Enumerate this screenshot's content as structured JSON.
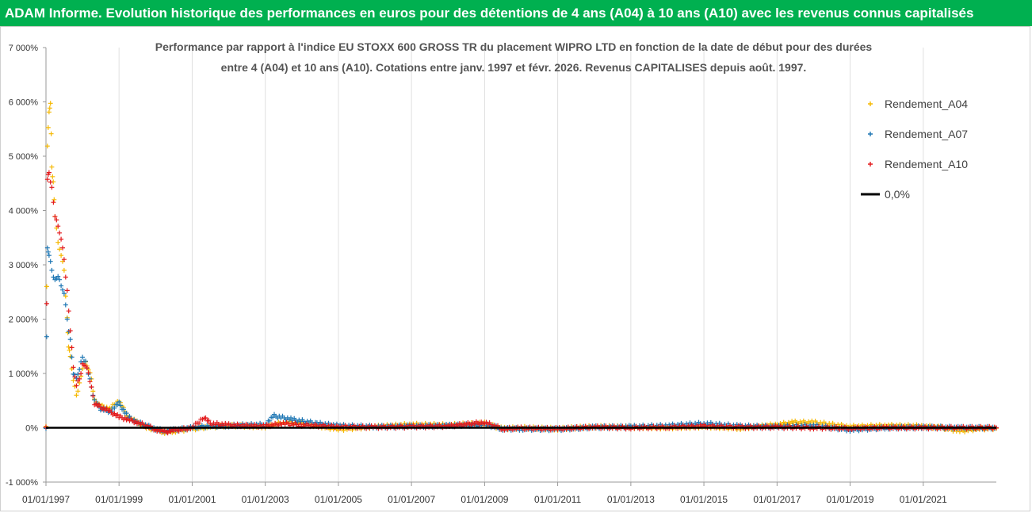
{
  "banner": {
    "title": "ADAM Informe. Evolution historique des performances en euros pour des détentions de 4 ans (A04) à 10 ans (A10) avec les revenus connus capitalisés"
  },
  "chart_data": {
    "type": "scatter",
    "title_lines": [
      "Performance par rapport à l'indice EU STOXX 600 GROSS TR  du placement WIPRO LTD en fonction de la date de début pour des durées",
      "entre 4 (A04) et 10 ans (A10). Cotations entre janv. 1997 et févr.  2026. Revenus CAPITALISES depuis août. 1997."
    ],
    "x_range": [
      "1997-01-01",
      "2023-01-01"
    ],
    "y_range": [
      -1000,
      7000
    ],
    "y_ticks": [
      7000,
      6000,
      5000,
      4000,
      3000,
      2000,
      1000,
      0,
      -1000
    ],
    "y_tick_labels": [
      "7 000%",
      "6 000%",
      "5 000%",
      "4 000%",
      "3 000%",
      "2 000%",
      "1 000%",
      "0%",
      "-1 000%"
    ],
    "x_ticks": [
      "1997-01-01",
      "1999-01-01",
      "2001-01-01",
      "2003-01-01",
      "2005-01-01",
      "2007-01-01",
      "2009-01-01",
      "2011-01-01",
      "2013-01-01",
      "2015-01-01",
      "2017-01-01",
      "2019-01-01",
      "2021-01-01"
    ],
    "x_tick_labels": [
      "01/01/1997",
      "01/01/1999",
      "01/01/2001",
      "01/01/2003",
      "01/01/2005",
      "01/01/2007",
      "01/01/2009",
      "01/01/2011",
      "01/01/2013",
      "01/01/2015",
      "01/01/2017",
      "01/01/2019",
      "01/01/2021"
    ],
    "grid": "vertical",
    "legend_position": "top-right",
    "series": [
      {
        "name": "Rendement_A04",
        "color": "#f5b800",
        "marker": "plus",
        "points": [
          [
            "1997-01-01",
            0
          ],
          [
            "1997-01-15",
            5200
          ],
          [
            "1997-02-01",
            5800
          ],
          [
            "1997-02-15",
            6000
          ],
          [
            "1997-03-01",
            4800
          ],
          [
            "1997-03-15",
            4500
          ],
          [
            "1997-04-01",
            3900
          ],
          [
            "1997-05-01",
            3400
          ],
          [
            "1997-06-01",
            3200
          ],
          [
            "1997-07-01",
            2900
          ],
          [
            "1997-08-01",
            2000
          ],
          [
            "1997-08-15",
            1500
          ],
          [
            "1997-09-01",
            1300
          ],
          [
            "1997-10-01",
            900
          ],
          [
            "1997-11-01",
            600
          ],
          [
            "1997-12-01",
            800
          ],
          [
            "1998-01-01",
            1100
          ],
          [
            "1998-02-01",
            1200
          ],
          [
            "1998-03-01",
            1100
          ],
          [
            "1998-04-01",
            900
          ],
          [
            "1998-05-01",
            500
          ],
          [
            "1998-07-01",
            400
          ],
          [
            "1998-10-01",
            350
          ],
          [
            "1999-01-01",
            500
          ],
          [
            "1999-04-01",
            200
          ],
          [
            "1999-07-01",
            100
          ],
          [
            "1999-10-01",
            0
          ],
          [
            "2000-01-01",
            -30
          ],
          [
            "2000-04-01",
            -80
          ],
          [
            "2000-07-01",
            -60
          ],
          [
            "2001-01-01",
            -20
          ],
          [
            "2001-07-01",
            20
          ],
          [
            "2002-01-01",
            40
          ],
          [
            "2003-01-01",
            20
          ],
          [
            "2003-07-01",
            100
          ],
          [
            "2004-01-01",
            80
          ],
          [
            "2005-01-01",
            -30
          ],
          [
            "2006-01-01",
            20
          ],
          [
            "2007-01-01",
            60
          ],
          [
            "2008-01-01",
            50
          ],
          [
            "2009-01-01",
            80
          ],
          [
            "2009-07-01",
            -20
          ],
          [
            "2010-01-01",
            0
          ],
          [
            "2011-01-01",
            -20
          ],
          [
            "2012-01-01",
            20
          ],
          [
            "2013-01-01",
            10
          ],
          [
            "2014-01-01",
            0
          ],
          [
            "2015-01-01",
            20
          ],
          [
            "2016-01-01",
            -10
          ],
          [
            "2017-01-01",
            60
          ],
          [
            "2017-07-01",
            100
          ],
          [
            "2018-01-01",
            100
          ],
          [
            "2019-01-01",
            20
          ],
          [
            "2020-01-01",
            40
          ],
          [
            "2021-01-01",
            30
          ],
          [
            "2021-07-01",
            0
          ],
          [
            "2022-01-01",
            -60
          ],
          [
            "2022-07-01",
            -20
          ],
          [
            "2023-01-01",
            -10
          ]
        ]
      },
      {
        "name": "Rendement_A07",
        "color": "#1f77b4",
        "marker": "plus",
        "points": [
          [
            "1997-01-01",
            0
          ],
          [
            "1997-01-15",
            3300
          ],
          [
            "1997-02-01",
            3200
          ],
          [
            "1997-03-01",
            2900
          ],
          [
            "1997-04-01",
            2700
          ],
          [
            "1997-05-01",
            2800
          ],
          [
            "1997-06-01",
            2600
          ],
          [
            "1997-07-01",
            2500
          ],
          [
            "1997-08-01",
            2000
          ],
          [
            "1997-09-01",
            1600
          ],
          [
            "1997-10-01",
            1000
          ],
          [
            "1997-11-01",
            900
          ],
          [
            "1997-12-01",
            1100
          ],
          [
            "1998-01-01",
            1300
          ],
          [
            "1998-02-01",
            1200
          ],
          [
            "1998-03-01",
            1000
          ],
          [
            "1998-05-01",
            500
          ],
          [
            "1998-07-01",
            350
          ],
          [
            "1998-10-01",
            300
          ],
          [
            "1999-01-01",
            450
          ],
          [
            "1999-04-01",
            200
          ],
          [
            "1999-07-01",
            100
          ],
          [
            "2000-01-01",
            -20
          ],
          [
            "2000-04-01",
            -60
          ],
          [
            "2000-07-01",
            -40
          ],
          [
            "2001-01-01",
            0
          ],
          [
            "2001-07-01",
            30
          ],
          [
            "2002-01-01",
            40
          ],
          [
            "2003-01-01",
            60
          ],
          [
            "2003-04-01",
            220
          ],
          [
            "2003-10-01",
            150
          ],
          [
            "2004-06-01",
            80
          ],
          [
            "2005-01-01",
            40
          ],
          [
            "2006-01-01",
            20
          ],
          [
            "2007-01-01",
            30
          ],
          [
            "2008-01-01",
            40
          ],
          [
            "2009-01-01",
            60
          ],
          [
            "2009-07-01",
            -20
          ],
          [
            "2010-01-01",
            -20
          ],
          [
            "2011-01-01",
            -30
          ],
          [
            "2012-01-01",
            10
          ],
          [
            "2013-01-01",
            20
          ],
          [
            "2014-01-01",
            40
          ],
          [
            "2015-01-01",
            80
          ],
          [
            "2016-01-01",
            30
          ],
          [
            "2017-01-01",
            20
          ],
          [
            "2018-01-01",
            40
          ],
          [
            "2019-01-01",
            -40
          ],
          [
            "2020-01-01",
            0
          ],
          [
            "2021-01-01",
            10
          ],
          [
            "2022-01-01",
            0
          ],
          [
            "2023-01-01",
            0
          ]
        ]
      },
      {
        "name": "Rendement_A10",
        "color": "#e31a1c",
        "marker": "plus",
        "points": [
          [
            "1997-01-01",
            0
          ],
          [
            "1997-01-15",
            4600
          ],
          [
            "1997-02-01",
            4700
          ],
          [
            "1997-03-01",
            4400
          ],
          [
            "1997-04-01",
            3900
          ],
          [
            "1997-05-01",
            3700
          ],
          [
            "1997-06-01",
            3500
          ],
          [
            "1997-07-01",
            3100
          ],
          [
            "1997-08-01",
            2500
          ],
          [
            "1997-09-01",
            1800
          ],
          [
            "1997-10-01",
            1100
          ],
          [
            "1997-11-01",
            800
          ],
          [
            "1997-12-01",
            900
          ],
          [
            "1998-01-01",
            1150
          ],
          [
            "1998-02-01",
            1150
          ],
          [
            "1998-03-01",
            1000
          ],
          [
            "1998-05-01",
            450
          ],
          [
            "1998-07-01",
            380
          ],
          [
            "1998-10-01",
            300
          ],
          [
            "1999-01-01",
            200
          ],
          [
            "1999-04-01",
            150
          ],
          [
            "1999-07-01",
            100
          ],
          [
            "2000-01-01",
            -30
          ],
          [
            "2000-04-01",
            -80
          ],
          [
            "2000-07-01",
            -50
          ],
          [
            "2001-01-01",
            0
          ],
          [
            "2001-05-01",
            200
          ],
          [
            "2001-07-01",
            80
          ],
          [
            "2002-01-01",
            50
          ],
          [
            "2003-01-01",
            30
          ],
          [
            "2003-07-01",
            80
          ],
          [
            "2004-01-01",
            50
          ],
          [
            "2005-01-01",
            20
          ],
          [
            "2006-01-01",
            10
          ],
          [
            "2007-01-01",
            20
          ],
          [
            "2008-01-01",
            30
          ],
          [
            "2009-01-01",
            100
          ],
          [
            "2009-07-01",
            -20
          ],
          [
            "2010-01-01",
            -10
          ],
          [
            "2011-01-01",
            -20
          ],
          [
            "2012-01-01",
            10
          ],
          [
            "2013-01-01",
            0
          ],
          [
            "2014-01-01",
            10
          ],
          [
            "2015-01-01",
            30
          ],
          [
            "2016-01-01",
            10
          ],
          [
            "2017-01-01",
            10
          ],
          [
            "2018-01-01",
            0
          ],
          [
            "2019-01-01",
            -10
          ],
          [
            "2020-01-01",
            0
          ],
          [
            "2021-01-01",
            0
          ],
          [
            "2022-01-01",
            0
          ],
          [
            "2023-01-01",
            0
          ]
        ]
      }
    ],
    "reference_line": {
      "name": "0,0%",
      "value": 0,
      "color": "#000000"
    }
  }
}
